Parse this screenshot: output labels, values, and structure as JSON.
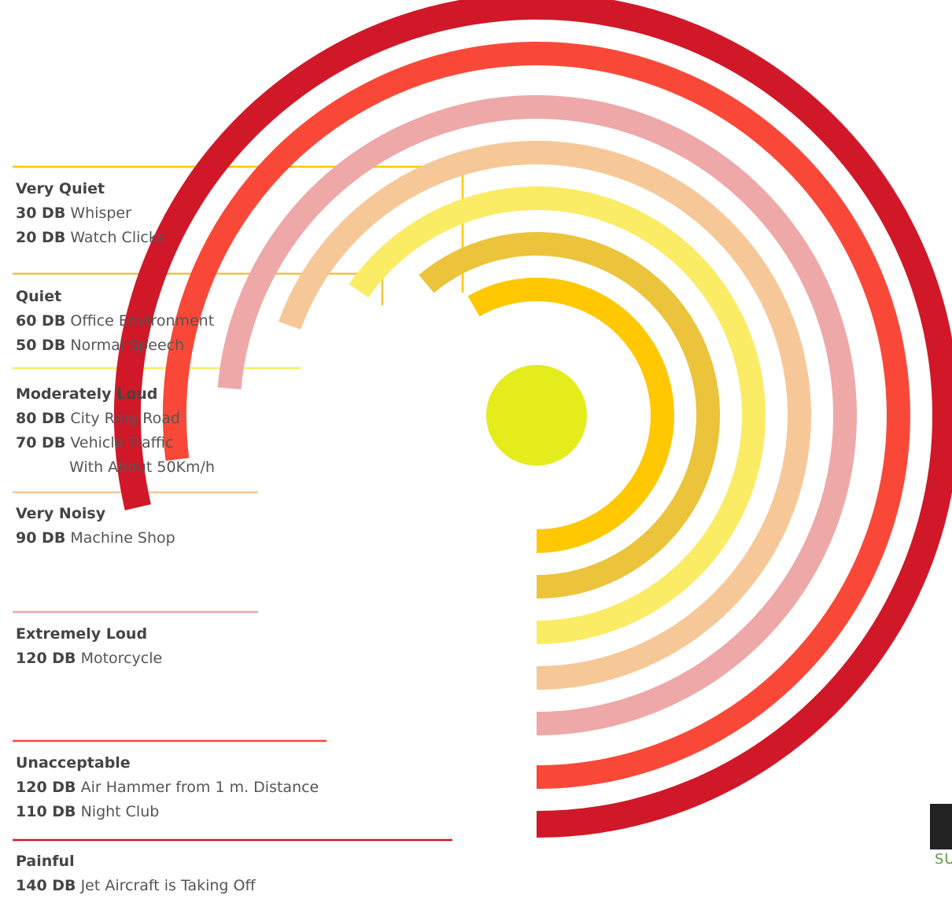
{
  "chart_data": {
    "type": "radial-bar",
    "rings": [
      {
        "category": "Very Quiet",
        "color": "#ffc800",
        "items": [
          {
            "db": "30 DB",
            "text": "Whisper"
          },
          {
            "db": "20 DB",
            "text": "Watch Clicks"
          }
        ]
      },
      {
        "category": "Quiet",
        "color": "#ebc43c",
        "items": [
          {
            "db": "60 DB",
            "text": "Office Environment"
          },
          {
            "db": "50 DB",
            "text": "Normal Speech"
          }
        ]
      },
      {
        "category": "Moderately Loud",
        "color": "#faec64",
        "items": [
          {
            "db": "80 DB",
            "text": "City Ring Road"
          },
          {
            "db": "70 DB",
            "text": "Vehicle Traffic",
            "text2": "With About 50Km/h"
          }
        ]
      },
      {
        "category": "Very Noisy",
        "color": "#f6c898",
        "items": [
          {
            "db": "90 DB",
            "text": "Machine Shop"
          }
        ]
      },
      {
        "category": "Extremely Loud",
        "color": "#eea8a8",
        "items": [
          {
            "db": "120 DB",
            "text": "Motorcycle"
          }
        ]
      },
      {
        "category": "Unacceptable",
        "color": "#fa4838",
        "items": [
          {
            "db": "120 DB",
            "text": "Air Hammer from 1 m. Distance"
          },
          {
            "db": "110 DB",
            "text": "Night Club"
          }
        ]
      },
      {
        "category": "Painful",
        "color": "#d01828",
        "items": [
          {
            "db": "140 DB",
            "text": "Jet Aircraft is Taking Off"
          }
        ]
      }
    ],
    "center_color": "#e4ec1c"
  },
  "logo": {
    "subtext": "SU"
  }
}
